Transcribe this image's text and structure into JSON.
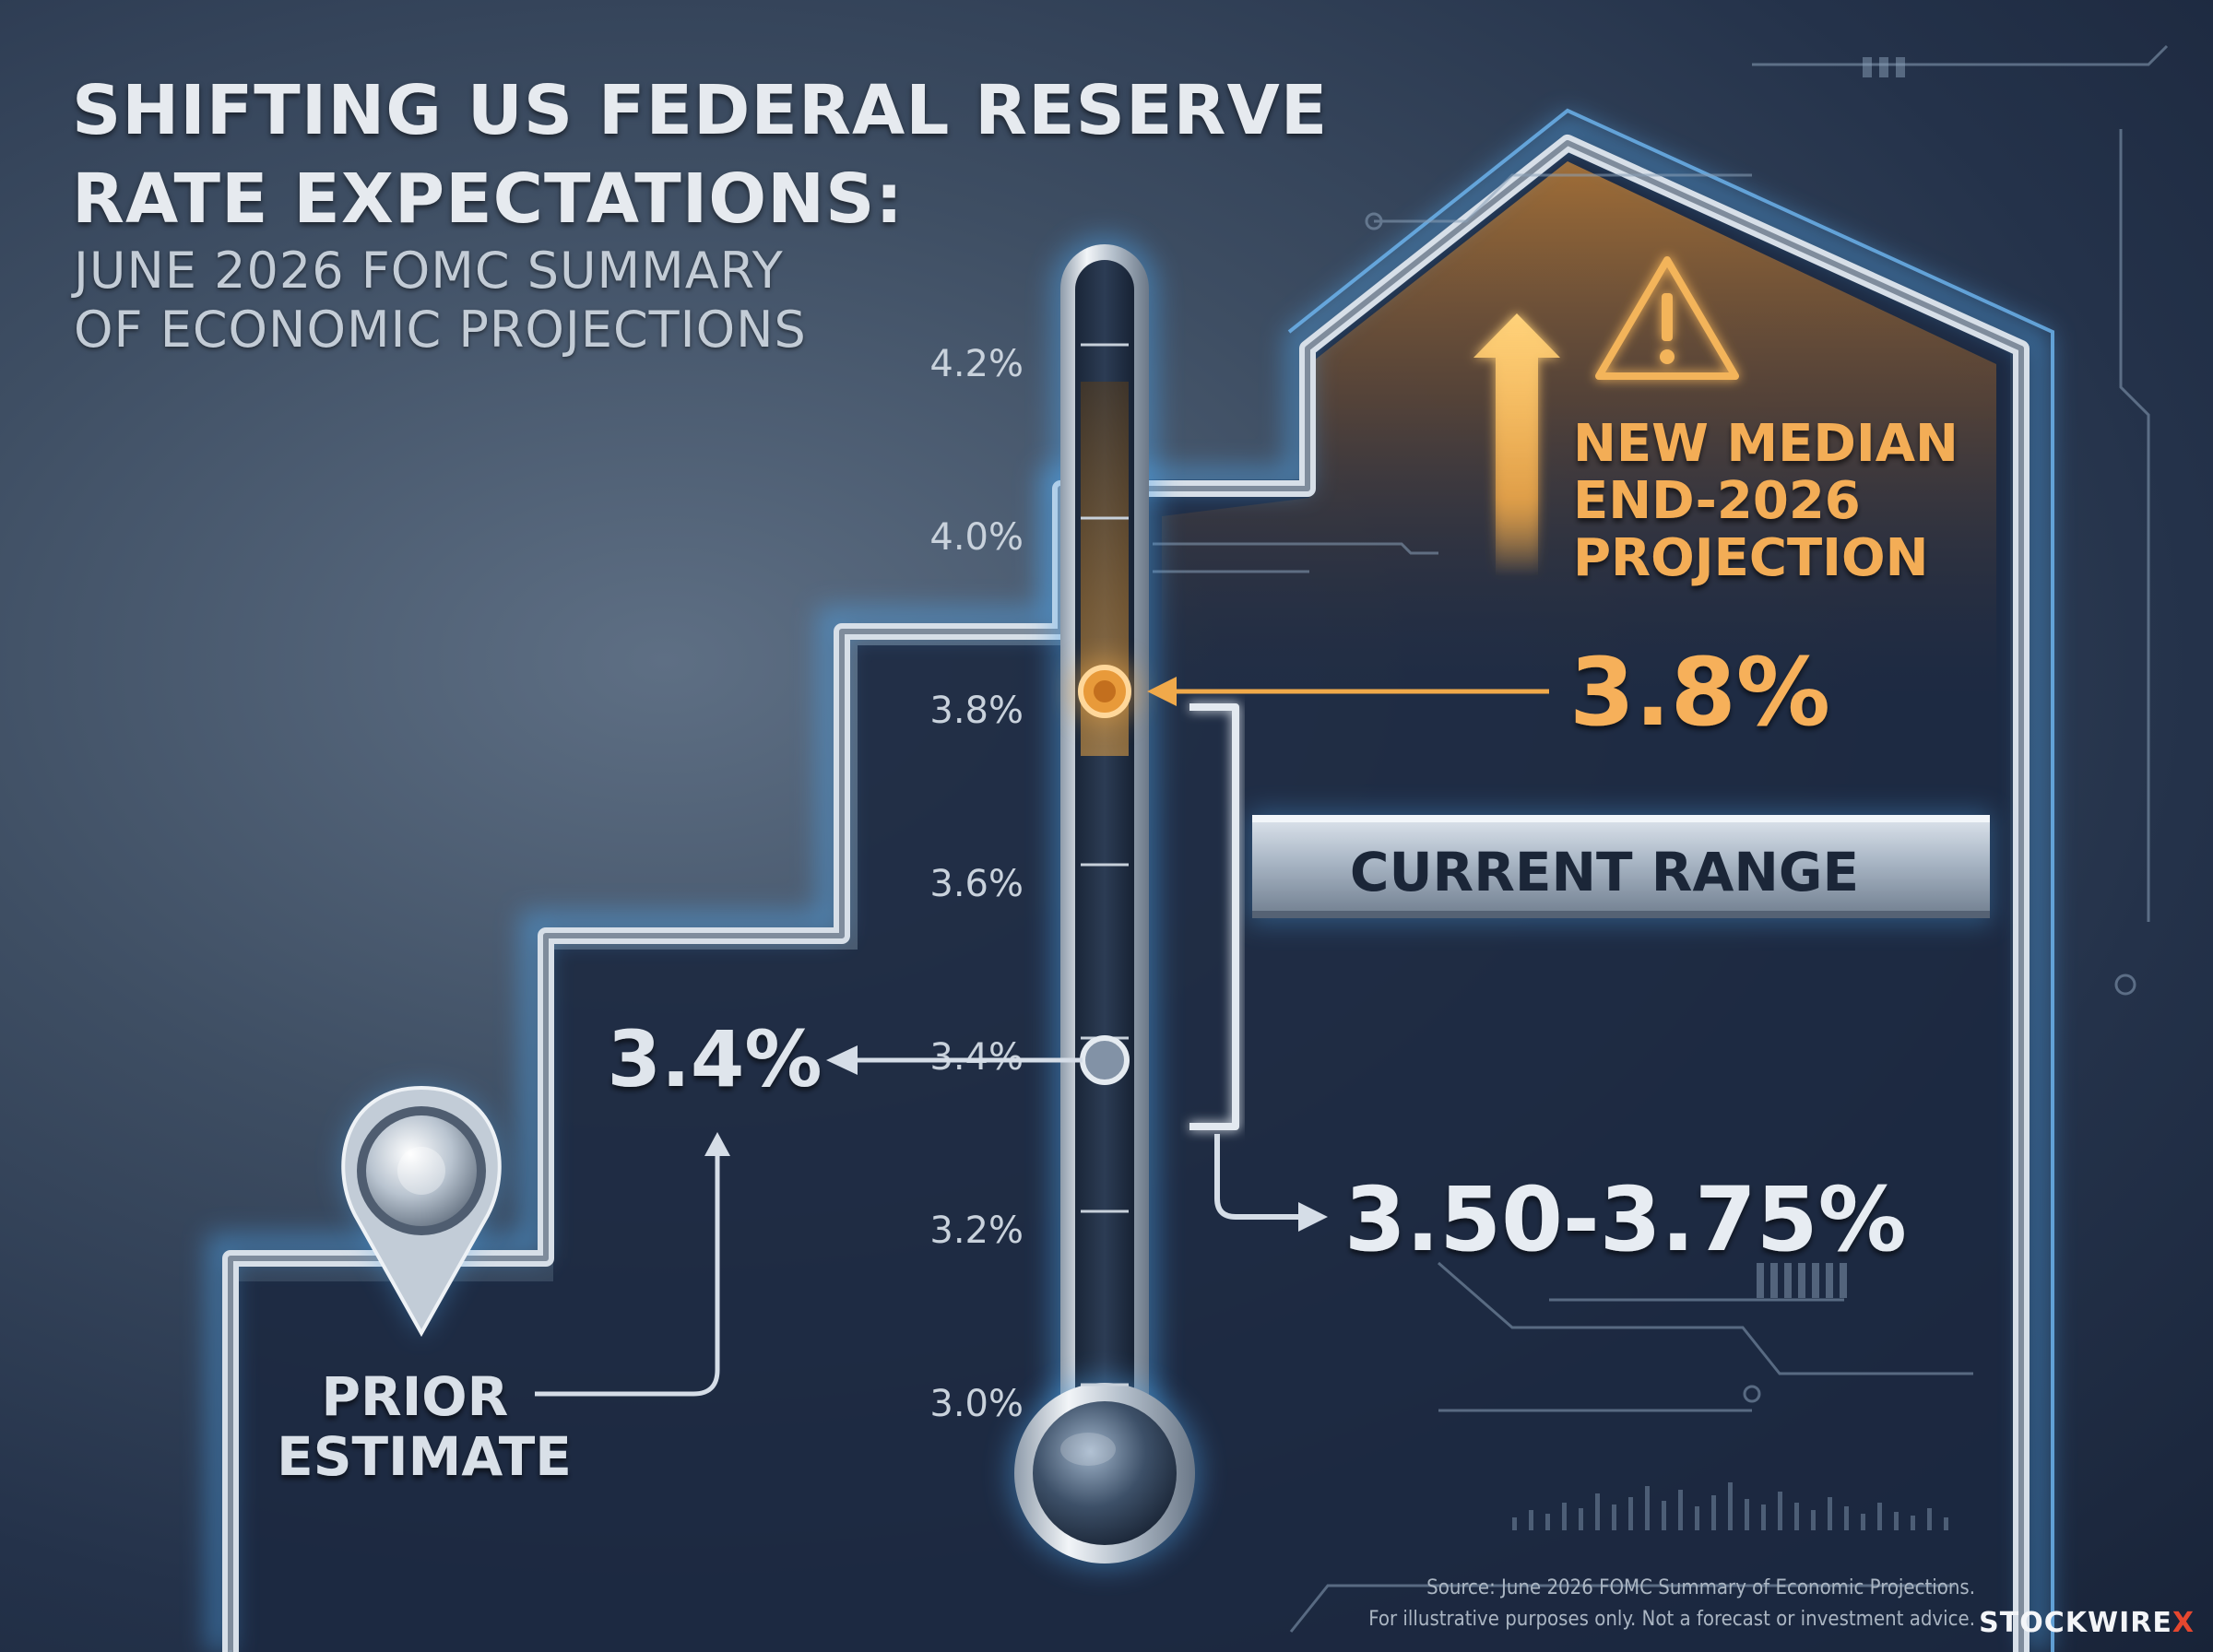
{
  "title_lines": [
    "SHIFTING US FEDERAL RESERVE",
    "RATE EXPECTATIONS:"
  ],
  "subtitle_lines": [
    "JUNE 2026 FOMC SUMMARY",
    "OF ECONOMIC PROJECTIONS"
  ],
  "chart_data": {
    "type": "thermometer",
    "title": "SHIFTING US FEDERAL RESERVE RATE EXPECTATIONS:",
    "subtitle": "JUNE 2026 FOMC SUMMARY OF ECONOMIC PROJECTIONS",
    "ylim": [
      2.9,
      4.3
    ],
    "ticks": [
      3.0,
      3.2,
      3.4,
      3.6,
      3.8,
      4.0,
      4.2
    ],
    "tick_labels": [
      "3.0%",
      "3.2%",
      "3.4%",
      "3.6%",
      "3.8%",
      "4.0%",
      "4.2%"
    ],
    "markers": [
      {
        "label_lines": [
          "PRIOR",
          "ESTIMATE"
        ],
        "value": 3.4,
        "value_label": "3.4%",
        "color": "#c9d3de"
      },
      {
        "label_lines": [
          "NEW MEDIAN",
          "END-2026",
          "PROJECTION"
        ],
        "value": 3.8,
        "value_label": "3.8%",
        "color": "#f0a94a"
      }
    ],
    "range": {
      "label": "CURRENT RANGE",
      "low": 3.5,
      "high": 3.75,
      "value_label": "3.50-3.75%"
    }
  },
  "source_lines": [
    "Source: June 2026 FOMC Summary of Economic Projections.",
    "For illustrative purposes only. Not a forecast or investment advice."
  ],
  "brand": {
    "name": "STOCKWIRE",
    "suffix": "X"
  },
  "colors": {
    "accent_orange": "#f0a94a",
    "glow_blue": "#58aef2",
    "metal": "#cfd8e2",
    "text_light": "#e6eaef",
    "background_dark": "#1b2840"
  },
  "icons": [
    "warning-icon",
    "up-arrow-icon",
    "location-pin-icon"
  ]
}
